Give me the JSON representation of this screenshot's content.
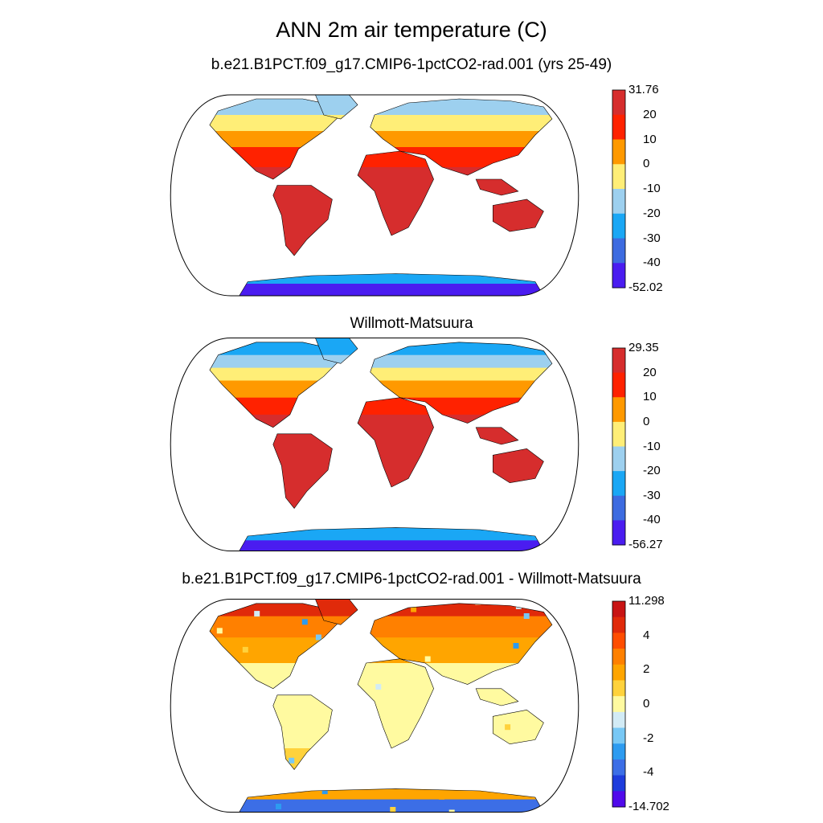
{
  "figure": {
    "title": "ANN 2m air temperature (C)"
  },
  "panels": [
    {
      "subtitle": "b.e21.B1PCT.f09_g17.CMIP6-1pctCO2-rad.001 (yrs 25-49)",
      "colorbar": {
        "labels": [
          "31.76",
          "20",
          "10",
          "0",
          "-10",
          "-20",
          "-30",
          "-40",
          "-52.02"
        ],
        "colors": [
          "#d62d2d",
          "#ff2200",
          "#ff9900",
          "#ffee77",
          "#9dd0ef",
          "#1aa7f5",
          "#3d6be0",
          "#4a1cf0"
        ]
      }
    },
    {
      "subtitle": "Willmott-Matsuura",
      "colorbar": {
        "labels": [
          "29.35",
          "20",
          "10",
          "0",
          "-10",
          "-20",
          "-30",
          "-40",
          "-56.27"
        ],
        "colors": [
          "#d62d2d",
          "#ff2200",
          "#ff9900",
          "#ffee77",
          "#9dd0ef",
          "#1aa7f5",
          "#3d6be0",
          "#4a1cf0"
        ]
      }
    },
    {
      "subtitle": "b.e21.B1PCT.f09_g17.CMIP6-1pctCO2-rad.001 - Willmott-Matsuura",
      "colorbar": {
        "labels": [
          "11.298",
          "4",
          "2",
          "0",
          "-2",
          "-4",
          "-14.702"
        ],
        "colors": [
          "#c81414",
          "#e02a0a",
          "#ff4d00",
          "#ff8000",
          "#ffa500",
          "#ffd23c",
          "#fffaa0",
          "#d2ebf5",
          "#78c8f5",
          "#2d9bf0",
          "#3c6ee6",
          "#1e3cdc",
          "#500aeb"
        ]
      }
    }
  ]
}
